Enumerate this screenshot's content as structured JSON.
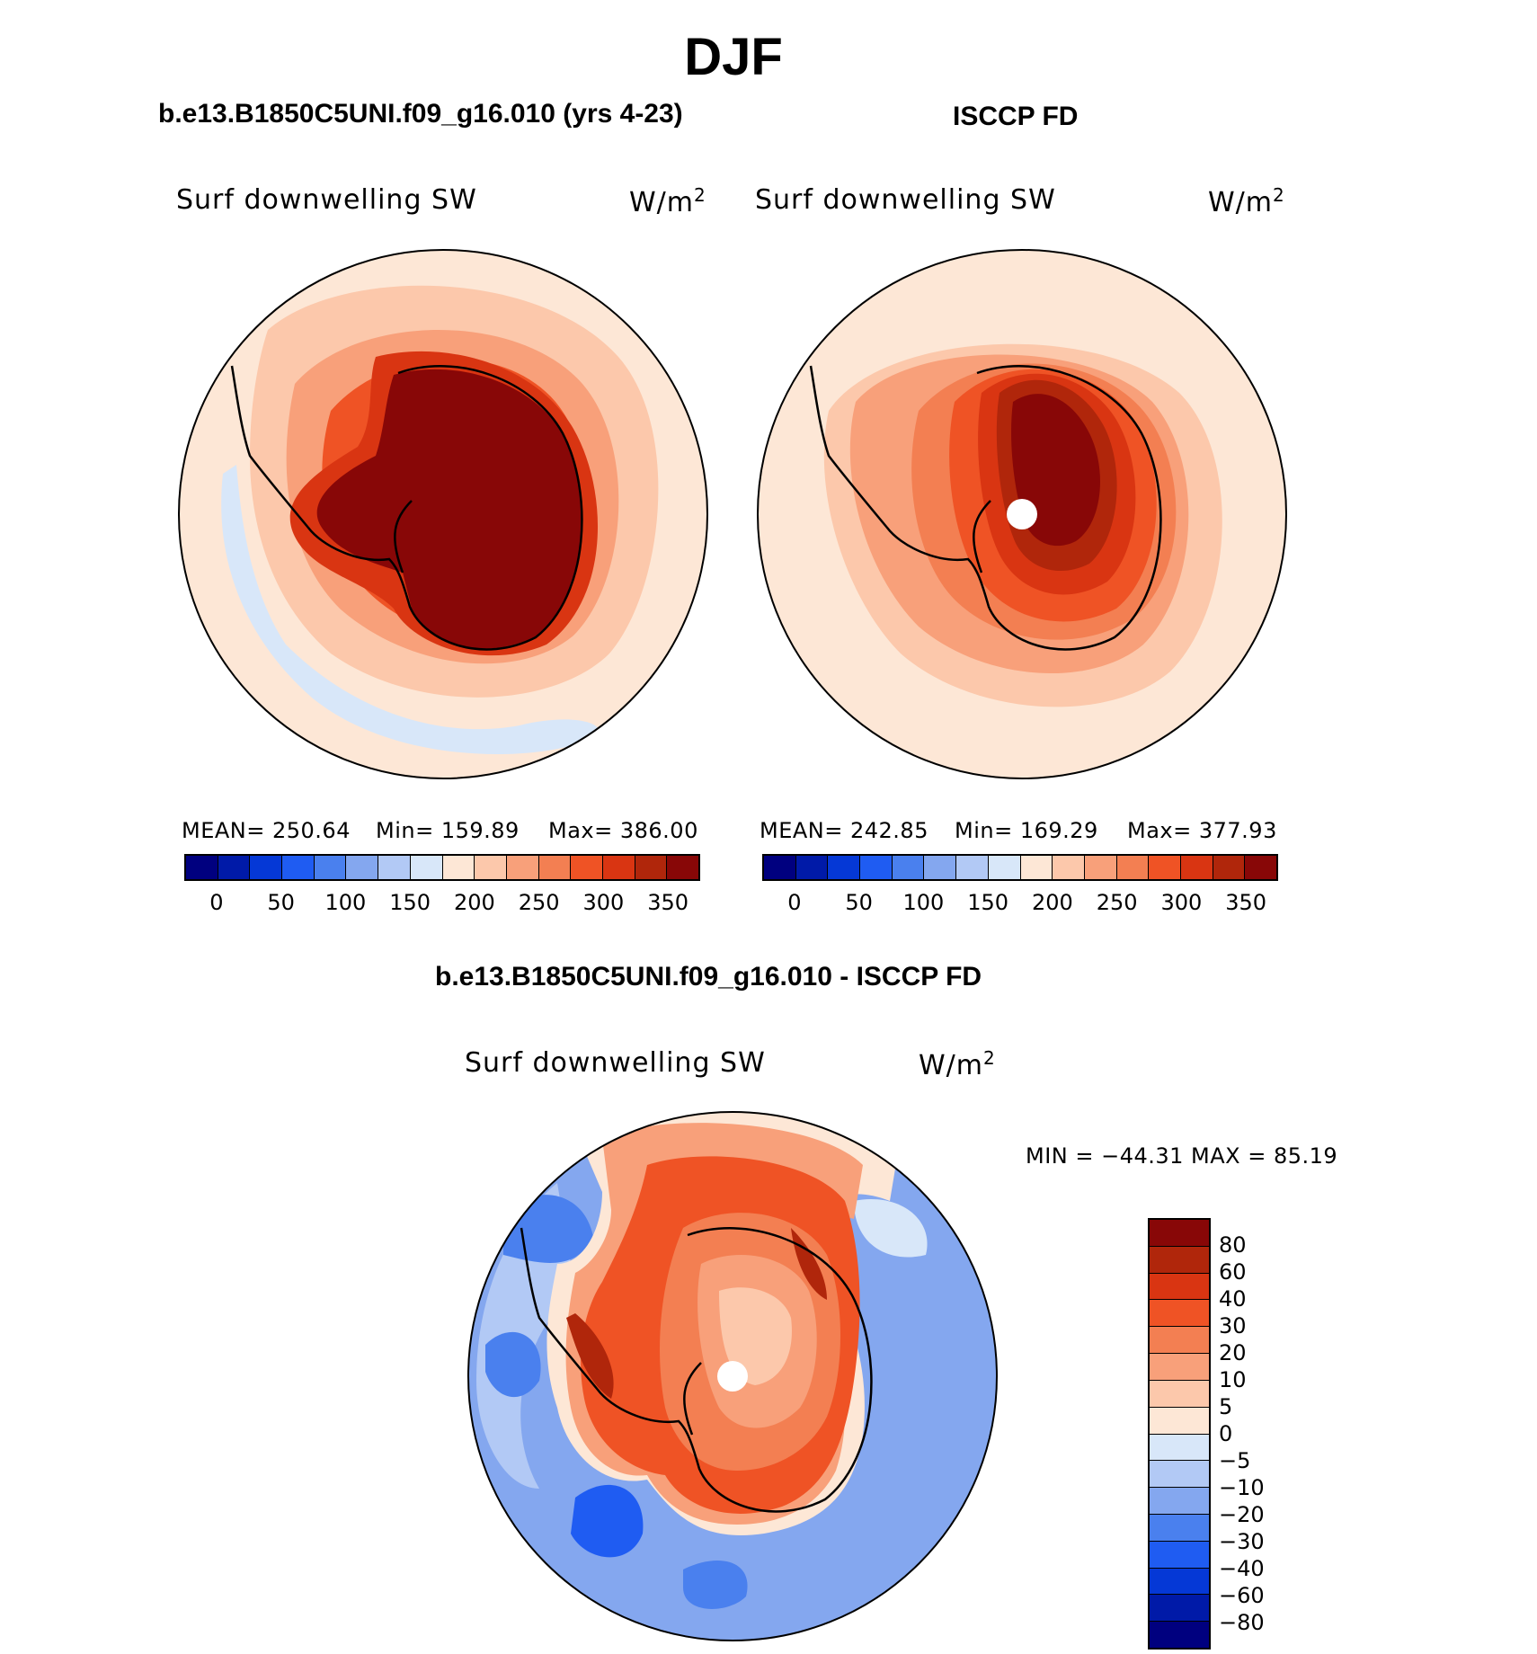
{
  "season_title": "DJF",
  "panels": [
    {
      "title": "b.e13.B1850C5UNI.f09_g16.010 (yrs 4-23)",
      "variable": "Surf  downwelling  SW",
      "units": "W/m",
      "units_exp": "2",
      "stats": {
        "mean": "MEAN=  250.64",
        "min": "Min=  159.89",
        "max": "Max=  386.00"
      }
    },
    {
      "title": "ISCCP FD",
      "variable": "Surf  downwelling  SW",
      "units": "W/m",
      "units_exp": "2",
      "stats": {
        "mean": "MEAN=  242.85",
        "min": "Min=  169.29",
        "max": "Max=  377.93"
      }
    }
  ],
  "diff_panel": {
    "title": "b.e13.B1850C5UNI.f09_g16.010 - ISCCP FD",
    "variable": "Surf  downwelling  SW",
    "units": "W/m",
    "units_exp": "2",
    "minmax": "MIN  =  −44.31  MAX  =    85.19"
  },
  "abs_colorbar": {
    "colors": [
      "#00007f",
      "#001aa8",
      "#0538d6",
      "#1f5cf2",
      "#4a80ee",
      "#84a7ef",
      "#b2c9f5",
      "#d8e7f9",
      "#fde7d6",
      "#fcc8ab",
      "#f8a07a",
      "#f37f52",
      "#ef5325",
      "#d93512",
      "#b0260b",
      "#880707"
    ],
    "ticks": [
      "0",
      "50",
      "100",
      "150",
      "200",
      "250",
      "300",
      "350"
    ]
  },
  "diff_colorbar": {
    "colors": [
      "#880707",
      "#b0260b",
      "#d93512",
      "#ef5325",
      "#f37f52",
      "#f8a07a",
      "#fcc8ab",
      "#fde7d6",
      "#d8e7f9",
      "#b2c9f5",
      "#84a7ef",
      "#4a80ee",
      "#1f5cf2",
      "#0538d6",
      "#001aa8",
      "#00007f"
    ],
    "ticks": [
      "80",
      "60",
      "40",
      "30",
      "20",
      "10",
      "5",
      "0",
      "−5",
      "−10",
      "−20",
      "−30",
      "−40",
      "−60",
      "−80"
    ]
  }
}
